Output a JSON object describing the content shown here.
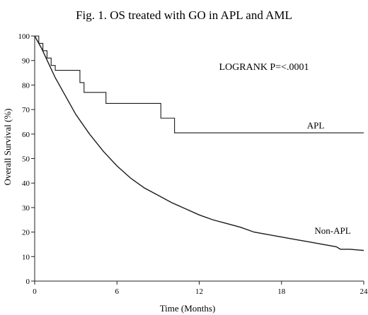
{
  "chart_data": {
    "type": "line",
    "title": "Fig. 1. OS treated with GO in APL and AML",
    "xlabel": "Time (Months)",
    "ylabel": "Overall Survival (%)",
    "xlim": [
      0,
      24
    ],
    "ylim": [
      0,
      100
    ],
    "xticks": [
      0,
      6,
      12,
      18,
      24
    ],
    "yticks": [
      0,
      10,
      20,
      30,
      40,
      50,
      60,
      70,
      80,
      90,
      100
    ],
    "grid": false,
    "annotation": "LOGRANK P=<.0001",
    "series": [
      {
        "name": "APL",
        "step": true,
        "points": [
          [
            0,
            100
          ],
          [
            0.3,
            97
          ],
          [
            0.6,
            94
          ],
          [
            0.9,
            91
          ],
          [
            1.2,
            88
          ],
          [
            1.5,
            86
          ],
          [
            3.3,
            81
          ],
          [
            3.6,
            77
          ],
          [
            5.2,
            72.5
          ],
          [
            9.2,
            66.5
          ],
          [
            10.2,
            60.5
          ],
          [
            24,
            60.5
          ]
        ]
      },
      {
        "name": "Non-APL",
        "step": false,
        "points": [
          [
            0,
            100
          ],
          [
            0.5,
            95
          ],
          [
            1,
            89
          ],
          [
            1.5,
            83
          ],
          [
            2,
            78
          ],
          [
            3,
            68
          ],
          [
            4,
            60
          ],
          [
            5,
            53
          ],
          [
            6,
            47
          ],
          [
            7,
            42
          ],
          [
            8,
            38
          ],
          [
            9,
            35
          ],
          [
            10,
            32
          ],
          [
            11,
            29.5
          ],
          [
            12,
            27
          ],
          [
            13,
            25
          ],
          [
            14,
            23.5
          ],
          [
            15,
            22
          ],
          [
            16,
            20
          ],
          [
            17,
            19
          ],
          [
            18,
            18
          ],
          [
            19,
            17
          ],
          [
            20,
            16
          ],
          [
            21,
            15
          ],
          [
            22,
            14
          ],
          [
            22.3,
            13
          ],
          [
            23,
            13
          ],
          [
            24,
            12.5
          ]
        ]
      }
    ]
  }
}
